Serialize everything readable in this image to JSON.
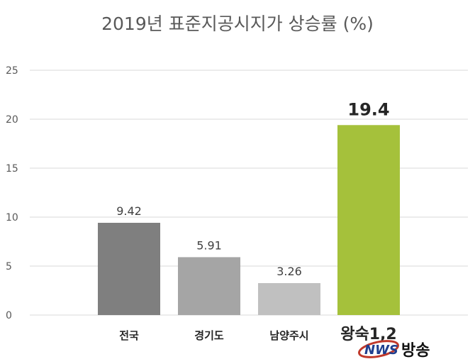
{
  "chart_data": {
    "type": "bar",
    "title": "2019년 표준지공시지가 상승률 (%)",
    "categories": [
      "전국",
      "경기도",
      "남양주시",
      "왕숙1,2"
    ],
    "values": [
      9.42,
      5.91,
      3.26,
      19.4
    ],
    "value_labels": [
      "9.42",
      "5.91",
      "3.26",
      "19.4"
    ],
    "colors": [
      "#7f7f7f",
      "#a5a5a5",
      "#c0c0c0",
      "#a5c13b"
    ],
    "highlight_index": 3,
    "ylim": [
      0,
      25
    ],
    "yticks": [
      0,
      5,
      10,
      15,
      20,
      25
    ],
    "grid": true,
    "legend": "none"
  },
  "watermark": {
    "logo_text": "NWS",
    "logo_suffix": "방송"
  }
}
